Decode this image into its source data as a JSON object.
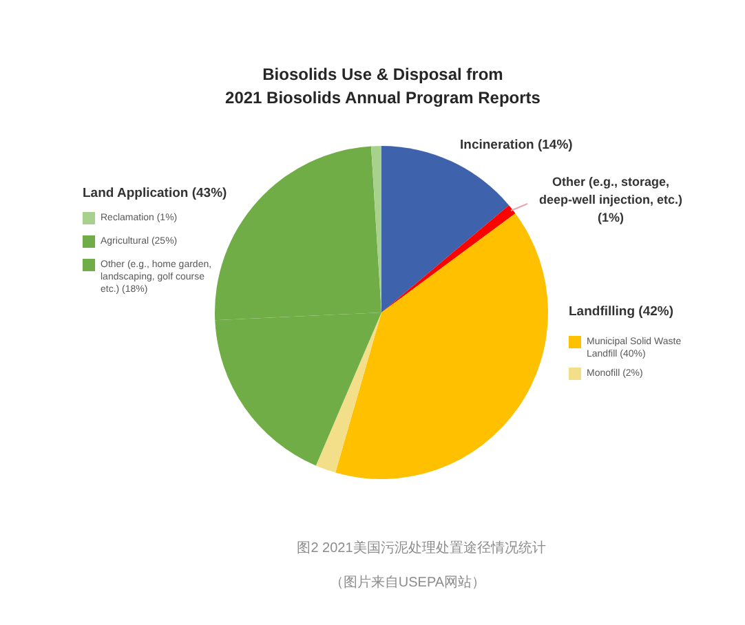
{
  "chart_data": {
    "type": "pie",
    "title": "Biosolids Use & Disposal from\n2021 Biosolids Annual Program Reports",
    "categories": [
      "Incineration (14%)",
      "Other (e.g., storage, deep-well injection, etc.) (1%)",
      "Municipal Solid Waste Landfill (40%)",
      "Monofill (2%)",
      "Other (e.g., home garden, landscaping, golf course etc.) (18%)",
      "Agricultural (25%)",
      "Reclamation (1%)"
    ],
    "values": [
      14,
      1,
      40,
      2,
      18,
      25,
      1
    ],
    "colors": [
      "#3f62ad",
      "#ff0000",
      "#ffc000",
      "#f3df8a",
      "#70ad47",
      "#70ad47",
      "#a9d18e"
    ],
    "legend": "left",
    "annotations": [
      "Land Application (43%)",
      "Landfilling (42%)",
      "图2 2021美国污泥处理处置途径情况统计",
      "（图片来自USEPA网站）"
    ]
  }
}
